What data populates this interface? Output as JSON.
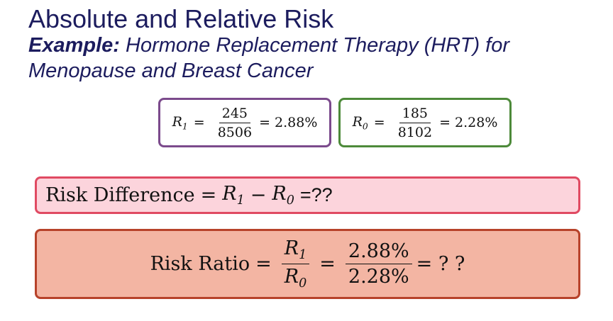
{
  "slide": {
    "title": "Absolute and Relative Risk",
    "subtitle_bold": "Example:",
    "subtitle_text": " Hormone Replacement Therapy (HRT) for Menopause and Breast Cancer"
  },
  "r1_box": {
    "var": "R",
    "sub": "1",
    "eq": "=",
    "numerator": "245",
    "denominator": "8506",
    "result": "= 2.88%",
    "border_color": "#7b4a8c"
  },
  "r0_box": {
    "var": "R",
    "sub": "0",
    "eq": "=",
    "numerator": "185",
    "denominator": "8102",
    "result": "= 2.28%",
    "border_color": "#4d8a3a"
  },
  "risk_difference": {
    "label": "Risk Difference",
    "eq": "=",
    "v1": "R",
    "s1": "1",
    "minus": "−",
    "v2": "R",
    "s2": "0",
    "result": "=??",
    "bg_color": "#fcd4dc",
    "border_color": "#e04a62"
  },
  "risk_ratio": {
    "label": "Risk Ratio",
    "eq1": "=",
    "num_var": "R",
    "num_sub": "1",
    "den_var": "R",
    "den_sub": "0",
    "eq2": "=",
    "num_val": "2.88%",
    "den_val": "2.28%",
    "result": "= ? ?",
    "bg_color": "#f3b5a3",
    "border_color": "#b7422a"
  }
}
